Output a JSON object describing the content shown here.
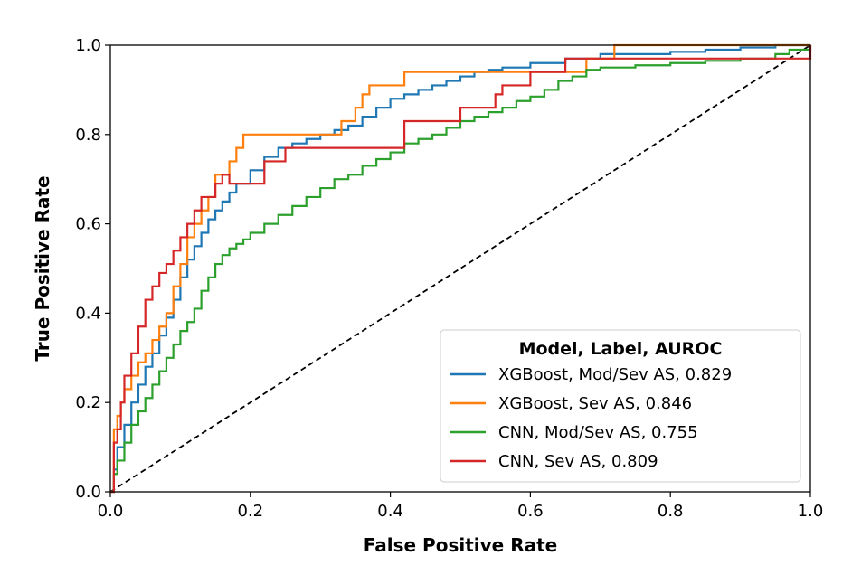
{
  "chart_data": {
    "type": "line",
    "xlabel": "False Positive Rate",
    "ylabel": "True Positive Rate",
    "xlim": [
      0.0,
      1.0
    ],
    "ylim": [
      0.0,
      1.0
    ],
    "x_ticks": [
      "0.0",
      "0.2",
      "0.4",
      "0.6",
      "0.8",
      "1.0"
    ],
    "y_ticks": [
      "0.0",
      "0.2",
      "0.4",
      "0.6",
      "0.8",
      "1.0"
    ],
    "grid": false,
    "legend": {
      "title": "Model, Label, AUROC",
      "placement": "lower-right"
    },
    "series": [
      {
        "name": "XGBoost, Mod/Sev AS, 0.829",
        "color": "#1f77b4",
        "x": [
          0.0,
          0.005,
          0.01,
          0.02,
          0.03,
          0.04,
          0.05,
          0.06,
          0.07,
          0.08,
          0.09,
          0.1,
          0.11,
          0.12,
          0.13,
          0.14,
          0.15,
          0.16,
          0.17,
          0.18,
          0.2,
          0.22,
          0.24,
          0.26,
          0.28,
          0.3,
          0.32,
          0.34,
          0.36,
          0.38,
          0.4,
          0.42,
          0.44,
          0.46,
          0.48,
          0.5,
          0.52,
          0.54,
          0.56,
          0.6,
          0.65,
          0.7,
          0.75,
          0.8,
          0.85,
          0.9,
          0.93,
          0.95,
          0.97,
          1.0
        ],
        "y": [
          0.0,
          0.05,
          0.1,
          0.15,
          0.2,
          0.24,
          0.28,
          0.31,
          0.35,
          0.39,
          0.43,
          0.48,
          0.52,
          0.55,
          0.58,
          0.61,
          0.63,
          0.65,
          0.67,
          0.69,
          0.72,
          0.75,
          0.77,
          0.78,
          0.79,
          0.8,
          0.81,
          0.82,
          0.84,
          0.86,
          0.88,
          0.89,
          0.9,
          0.91,
          0.92,
          0.93,
          0.94,
          0.945,
          0.95,
          0.96,
          0.97,
          0.98,
          0.98,
          0.985,
          0.99,
          0.995,
          0.995,
          1.0,
          1.0,
          1.0
        ]
      },
      {
        "name": "XGBoost, Sev AS, 0.846",
        "color": "#ff7f0e",
        "x": [
          0.0,
          0.005,
          0.01,
          0.015,
          0.02,
          0.03,
          0.04,
          0.05,
          0.06,
          0.07,
          0.08,
          0.09,
          0.1,
          0.11,
          0.12,
          0.13,
          0.14,
          0.15,
          0.16,
          0.17,
          0.18,
          0.19,
          0.25,
          0.3,
          0.33,
          0.35,
          0.36,
          0.37,
          0.38,
          0.4,
          0.42,
          0.5,
          0.6,
          0.65,
          0.68,
          0.7,
          0.72,
          0.8,
          0.9,
          1.0
        ],
        "y": [
          0.0,
          0.14,
          0.17,
          0.2,
          0.23,
          0.26,
          0.29,
          0.31,
          0.34,
          0.37,
          0.4,
          0.46,
          0.51,
          0.57,
          0.6,
          0.63,
          0.66,
          0.71,
          0.71,
          0.74,
          0.77,
          0.8,
          0.8,
          0.8,
          0.83,
          0.86,
          0.89,
          0.91,
          0.91,
          0.91,
          0.94,
          0.94,
          0.94,
          0.94,
          0.97,
          0.97,
          1.0,
          1.0,
          1.0,
          1.0
        ]
      },
      {
        "name": "CNN, Mod/Sev AS, 0.755",
        "color": "#2ca02c",
        "x": [
          0.0,
          0.005,
          0.01,
          0.02,
          0.03,
          0.04,
          0.05,
          0.06,
          0.07,
          0.08,
          0.09,
          0.1,
          0.11,
          0.12,
          0.13,
          0.14,
          0.15,
          0.16,
          0.17,
          0.18,
          0.19,
          0.2,
          0.22,
          0.24,
          0.26,
          0.28,
          0.3,
          0.32,
          0.34,
          0.36,
          0.38,
          0.4,
          0.42,
          0.44,
          0.46,
          0.48,
          0.5,
          0.52,
          0.54,
          0.56,
          0.58,
          0.6,
          0.62,
          0.64,
          0.66,
          0.68,
          0.7,
          0.75,
          0.8,
          0.85,
          0.9,
          0.95,
          0.97,
          1.0
        ],
        "y": [
          0.0,
          0.04,
          0.07,
          0.11,
          0.15,
          0.18,
          0.21,
          0.24,
          0.27,
          0.3,
          0.33,
          0.36,
          0.38,
          0.41,
          0.45,
          0.48,
          0.51,
          0.53,
          0.545,
          0.555,
          0.565,
          0.58,
          0.6,
          0.62,
          0.64,
          0.66,
          0.68,
          0.7,
          0.71,
          0.73,
          0.745,
          0.76,
          0.78,
          0.79,
          0.8,
          0.815,
          0.83,
          0.84,
          0.85,
          0.86,
          0.875,
          0.885,
          0.9,
          0.92,
          0.93,
          0.945,
          0.95,
          0.955,
          0.96,
          0.965,
          0.97,
          0.98,
          0.99,
          1.0
        ]
      },
      {
        "name": "CNN, Sev AS, 0.809",
        "color": "#d62728",
        "x": [
          0.0,
          0.005,
          0.01,
          0.015,
          0.02,
          0.03,
          0.04,
          0.05,
          0.06,
          0.07,
          0.08,
          0.09,
          0.1,
          0.11,
          0.12,
          0.13,
          0.15,
          0.16,
          0.17,
          0.2,
          0.22,
          0.25,
          0.28,
          0.3,
          0.35,
          0.37,
          0.4,
          0.42,
          0.5,
          0.55,
          0.56,
          0.6,
          0.62,
          0.65,
          0.7,
          0.72,
          0.8,
          0.9,
          0.98,
          1.0
        ],
        "y": [
          0.0,
          0.11,
          0.14,
          0.2,
          0.26,
          0.31,
          0.37,
          0.43,
          0.46,
          0.49,
          0.51,
          0.54,
          0.57,
          0.6,
          0.63,
          0.66,
          0.69,
          0.71,
          0.69,
          0.69,
          0.74,
          0.77,
          0.77,
          0.77,
          0.77,
          0.77,
          0.77,
          0.83,
          0.86,
          0.89,
          0.91,
          0.94,
          0.94,
          0.97,
          0.97,
          0.97,
          0.97,
          0.97,
          0.97,
          1.0
        ]
      }
    ],
    "reference_line": {
      "x": [
        0.0,
        1.0
      ],
      "y": [
        0.0,
        1.0
      ],
      "color": "#000000",
      "style": "dashed"
    }
  }
}
